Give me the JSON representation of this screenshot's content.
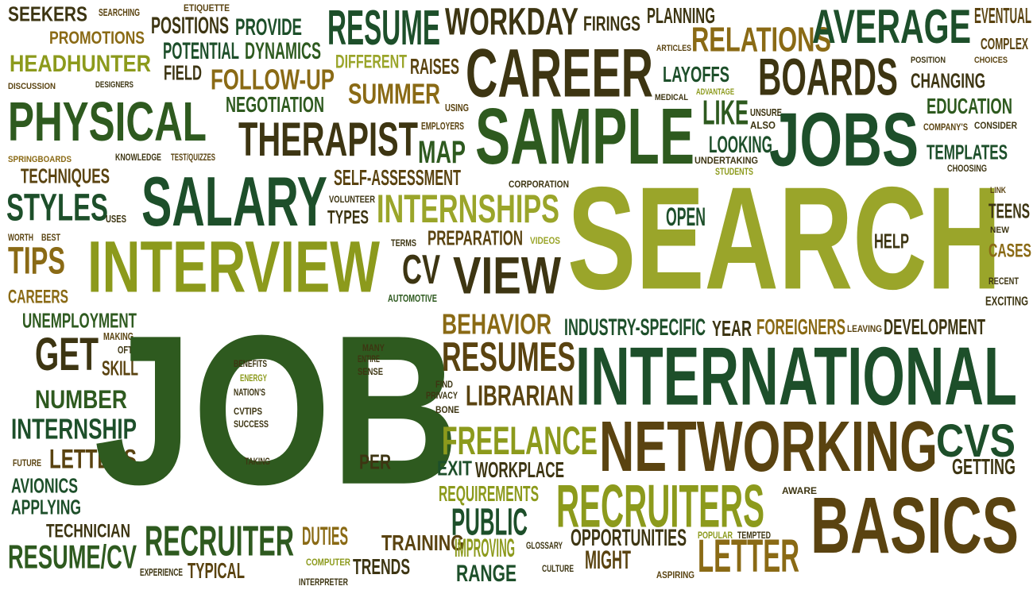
{
  "palette": {
    "dark_green": "#2e5a1f",
    "forest_green": "#1d4f2a",
    "olive": "#8c9a1c",
    "light_olive": "#9aa52a",
    "brown": "#5a4310",
    "gold_brown": "#8a6a15",
    "dark_brown": "#3d3512",
    "yellow_green": "#a6b31e"
  },
  "words": [
    {
      "text": "SEEKERS",
      "color": "dark_brown"
    },
    {
      "text": "SEARCHING",
      "color": "brown"
    },
    {
      "text": "PROMOTIONS",
      "color": "gold_brown"
    },
    {
      "text": "HEADHUNTER",
      "color": "olive"
    },
    {
      "text": "DISCUSSION",
      "color": "brown"
    },
    {
      "text": "DESIGNERS",
      "color": "dark_brown"
    },
    {
      "text": "PHYSICAL",
      "color": "dark_green"
    },
    {
      "text": "SPRINGBOARDS",
      "color": "gold_brown"
    },
    {
      "text": "KNOWLEDGE",
      "color": "dark_brown"
    },
    {
      "text": "TEST/QUIZZES",
      "color": "brown"
    },
    {
      "text": "TECHNIQUES",
      "color": "brown"
    },
    {
      "text": "STYLES",
      "color": "forest_green"
    },
    {
      "text": "USES",
      "color": "dark_brown"
    },
    {
      "text": "WORTH",
      "color": "brown"
    },
    {
      "text": "BEST",
      "color": "brown"
    },
    {
      "text": "TIPS",
      "color": "gold_brown"
    },
    {
      "text": "CAREERS",
      "color": "gold_brown"
    },
    {
      "text": "UNEMPLOYMENT",
      "color": "dark_green"
    },
    {
      "text": "GET",
      "color": "dark_brown"
    },
    {
      "text": "MAKING",
      "color": "brown"
    },
    {
      "text": "OFTEN",
      "color": "dark_brown"
    },
    {
      "text": "SKILL",
      "color": "brown"
    },
    {
      "text": "NUMBER",
      "color": "dark_green"
    },
    {
      "text": "INTERNSHIP",
      "color": "forest_green"
    },
    {
      "text": "FUTURE",
      "color": "brown"
    },
    {
      "text": "LETTERS",
      "color": "brown"
    },
    {
      "text": "AVIONICS",
      "color": "forest_green"
    },
    {
      "text": "APPLYING",
      "color": "forest_green"
    },
    {
      "text": "TECHNICIAN",
      "color": "dark_brown"
    },
    {
      "text": "RESUME/CV",
      "color": "dark_green"
    },
    {
      "text": "EXPERIENCE",
      "color": "dark_brown"
    },
    {
      "text": "TYPICAL",
      "color": "brown"
    },
    {
      "text": "ETIQUETTE",
      "color": "brown"
    },
    {
      "text": "POSITIONS",
      "color": "dark_brown"
    },
    {
      "text": "PROVIDE",
      "color": "forest_green"
    },
    {
      "text": "POTENTIAL",
      "color": "forest_green"
    },
    {
      "text": "DYNAMICS",
      "color": "dark_green"
    },
    {
      "text": "FIELD",
      "color": "dark_brown"
    },
    {
      "text": "FOLLOW-UP",
      "color": "gold_brown"
    },
    {
      "text": "NEGOTIATION",
      "color": "dark_green"
    },
    {
      "text": "THERAPIST",
      "color": "dark_brown"
    },
    {
      "text": "SALARY",
      "color": "forest_green"
    },
    {
      "text": "INTERVIEW",
      "color": "olive"
    },
    {
      "text": "JOB",
      "color": "dark_green"
    },
    {
      "text": "BENEFITS",
      "color": "dark_brown"
    },
    {
      "text": "ENERGY",
      "color": "olive"
    },
    {
      "text": "NATION'S",
      "color": "dark_brown"
    },
    {
      "text": "CVTIPS",
      "color": "dark_brown"
    },
    {
      "text": "SUCCESS",
      "color": "dark_brown"
    },
    {
      "text": "TAKING",
      "color": "dark_brown"
    },
    {
      "text": "RECRUITER",
      "color": "dark_green"
    },
    {
      "text": "RESUME",
      "color": "forest_green"
    },
    {
      "text": "DIFFERENT",
      "color": "light_olive"
    },
    {
      "text": "RAISES",
      "color": "brown"
    },
    {
      "text": "SUMMER",
      "color": "gold_brown"
    },
    {
      "text": "USING",
      "color": "brown"
    },
    {
      "text": "EMPLOYERS",
      "color": "brown"
    },
    {
      "text": "MAP",
      "color": "dark_green"
    },
    {
      "text": "SELF-ASSESSMENT",
      "color": "brown"
    },
    {
      "text": "VOLUNTEER",
      "color": "dark_brown"
    },
    {
      "text": "TYPES",
      "color": "dark_brown"
    },
    {
      "text": "INTERNSHIPS",
      "color": "light_olive"
    },
    {
      "text": "TERMS",
      "color": "dark_brown"
    },
    {
      "text": "PREPARATION",
      "color": "brown"
    },
    {
      "text": "VIDEOS",
      "color": "light_olive"
    },
    {
      "text": "CV",
      "color": "dark_brown"
    },
    {
      "text": "VIEW",
      "color": "dark_brown"
    },
    {
      "text": "AUTOMOTIVE",
      "color": "dark_green"
    },
    {
      "text": "MANY",
      "color": "dark_brown"
    },
    {
      "text": "ENTIRE",
      "color": "dark_brown"
    },
    {
      "text": "SENSE",
      "color": "dark_brown"
    },
    {
      "text": "PER",
      "color": "dark_brown"
    },
    {
      "text": "WORKDAY",
      "color": "dark_brown"
    },
    {
      "text": "CAREER",
      "color": "dark_brown"
    },
    {
      "text": "SAMPLE",
      "color": "dark_green"
    },
    {
      "text": "CORPORATION",
      "color": "dark_brown"
    },
    {
      "text": "SEARCH",
      "color": "light_olive"
    },
    {
      "text": "BEHAVIOR",
      "color": "gold_brown"
    },
    {
      "text": "RESUMES",
      "color": "brown"
    },
    {
      "text": "FIND",
      "color": "dark_brown"
    },
    {
      "text": "PRIVACY",
      "color": "dark_brown"
    },
    {
      "text": "BONE",
      "color": "dark_brown"
    },
    {
      "text": "LIBRARIAN",
      "color": "brown"
    },
    {
      "text": "FREELANCE",
      "color": "olive"
    },
    {
      "text": "EXIT",
      "color": "forest_green"
    },
    {
      "text": "WORKPLACE",
      "color": "dark_brown"
    },
    {
      "text": "REQUIREMENTS",
      "color": "olive"
    },
    {
      "text": "PUBLIC",
      "color": "forest_green"
    },
    {
      "text": "TRAINING",
      "color": "brown"
    },
    {
      "text": "IMPROVING",
      "color": "olive"
    },
    {
      "text": "RANGE",
      "color": "forest_green"
    },
    {
      "text": "DUTIES",
      "color": "gold_brown"
    },
    {
      "text": "COMPUTER",
      "color": "olive"
    },
    {
      "text": "INTERPRETER",
      "color": "dark_brown"
    },
    {
      "text": "TRENDS",
      "color": "dark_brown"
    },
    {
      "text": "GLOSSARY",
      "color": "dark_brown"
    },
    {
      "text": "CULTURE",
      "color": "dark_brown"
    },
    {
      "text": "MIGHT",
      "color": "brown"
    },
    {
      "text": "ASPIRING",
      "color": "brown"
    },
    {
      "text": "FIRINGS",
      "color": "dark_brown"
    },
    {
      "text": "PLANNING",
      "color": "dark_brown"
    },
    {
      "text": "ARTICLES",
      "color": "brown"
    },
    {
      "text": "RELATIONS",
      "color": "gold_brown"
    },
    {
      "text": "LAYOFFS",
      "color": "forest_green"
    },
    {
      "text": "MEDICAL",
      "color": "dark_brown"
    },
    {
      "text": "ADVANTAGE",
      "color": "olive"
    },
    {
      "text": "LIKE",
      "color": "dark_green"
    },
    {
      "text": "LOOKING",
      "color": "forest_green"
    },
    {
      "text": "UNDERTAKING",
      "color": "dark_brown"
    },
    {
      "text": "STUDENTS",
      "color": "olive"
    },
    {
      "text": "UNSURE",
      "color": "dark_brown"
    },
    {
      "text": "ALSO",
      "color": "dark_brown"
    },
    {
      "text": "AVERAGE",
      "color": "forest_green"
    },
    {
      "text": "BOARDS",
      "color": "dark_brown"
    },
    {
      "text": "JOBS",
      "color": "forest_green"
    },
    {
      "text": "OPEN",
      "color": "forest_green"
    },
    {
      "text": "HELP",
      "color": "dark_brown"
    },
    {
      "text": "INDUSTRY-SPECIFIC",
      "color": "forest_green"
    },
    {
      "text": "YEAR",
      "color": "dark_brown"
    },
    {
      "text": "FOREIGNERS",
      "color": "gold_brown"
    },
    {
      "text": "LEAVING",
      "color": "brown"
    },
    {
      "text": "DEVELOPMENT",
      "color": "dark_brown"
    },
    {
      "text": "INTERNATIONAL",
      "color": "forest_green"
    },
    {
      "text": "NETWORKING",
      "color": "brown"
    },
    {
      "text": "CVS",
      "color": "forest_green"
    },
    {
      "text": "GETTING",
      "color": "dark_brown"
    },
    {
      "text": "RECRUITERS",
      "color": "olive"
    },
    {
      "text": "AWARE",
      "color": "dark_brown"
    },
    {
      "text": "BASICS",
      "color": "brown"
    },
    {
      "text": "OPPORTUNITIES",
      "color": "dark_brown"
    },
    {
      "text": "POPULAR",
      "color": "olive"
    },
    {
      "text": "TEMPTED",
      "color": "dark_brown"
    },
    {
      "text": "LETTER",
      "color": "gold_brown"
    },
    {
      "text": "EVENTUAL",
      "color": "brown"
    },
    {
      "text": "COMPLEX",
      "color": "brown"
    },
    {
      "text": "POSITION",
      "color": "dark_brown"
    },
    {
      "text": "CHOICES",
      "color": "brown"
    },
    {
      "text": "CHANGING",
      "color": "dark_brown"
    },
    {
      "text": "EDUCATION",
      "color": "dark_green"
    },
    {
      "text": "COMPANY'S",
      "color": "brown"
    },
    {
      "text": "CONSIDER",
      "color": "dark_brown"
    },
    {
      "text": "TEMPLATES",
      "color": "forest_green"
    },
    {
      "text": "CHOOSING",
      "color": "dark_brown"
    },
    {
      "text": "LINK",
      "color": "brown"
    },
    {
      "text": "TEENS",
      "color": "dark_brown"
    },
    {
      "text": "NEW",
      "color": "dark_brown"
    },
    {
      "text": "CASES",
      "color": "gold_brown"
    },
    {
      "text": "RECENT",
      "color": "dark_brown"
    },
    {
      "text": "EXCITING",
      "color": "dark_brown"
    }
  ]
}
